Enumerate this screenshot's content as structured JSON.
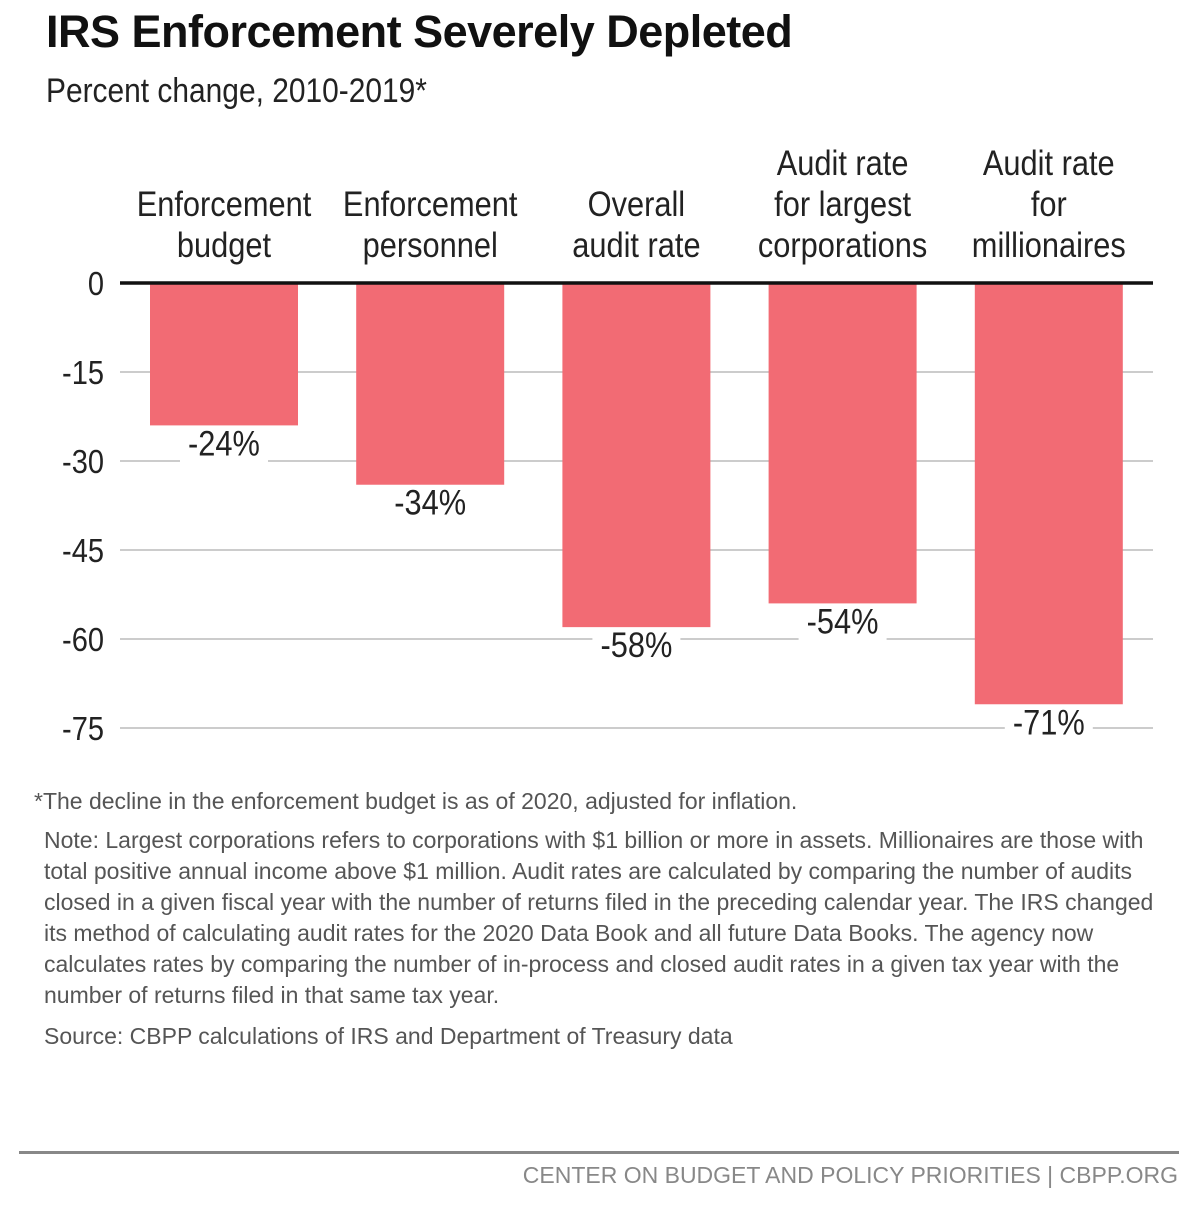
{
  "title": "IRS Enforcement Severely Depleted",
  "subtitle": "Percent change, 2010-2019*",
  "chart_data": {
    "type": "bar",
    "categories": [
      [
        "Enforcement",
        "budget"
      ],
      [
        "Enforcement",
        "personnel"
      ],
      [
        "Overall",
        "audit rate"
      ],
      [
        "Audit rate",
        "for largest",
        "corporations"
      ],
      [
        "Audit rate",
        "for",
        "millionaires"
      ]
    ],
    "values": [
      -24,
      -34,
      -58,
      -54,
      -71
    ],
    "data_labels": [
      "-24%",
      "-34%",
      "-58%",
      "-54%",
      "-71%"
    ],
    "ylim": [
      -75,
      0
    ],
    "yticks": [
      0,
      -15,
      -30,
      -45,
      -60,
      -75
    ],
    "grid": true,
    "bar_color": "#F26B74"
  },
  "footnote": "*The decline in the enforcement budget is as of 2020, adjusted for inflation.",
  "note": "Note: Largest corporations refers to corporations with $1 billion or more in assets. Millionaires are those with total positive annual income above $1 million. Audit rates are calculated by comparing the number of audits closed in a given fiscal year with the number of returns filed in the preceding calendar year. The IRS changed its method of calculating audit rates for the 2020 Data Book and all future Data Books. The agency now calculates rates by comparing the number of in-process and closed audit rates in a given tax year with the number of returns filed in that same tax year.",
  "source": "Source: CBPP calculations of IRS and Department of Treasury data",
  "footer": "CENTER ON BUDGET AND POLICY PRIORITIES | CBPP.ORG"
}
